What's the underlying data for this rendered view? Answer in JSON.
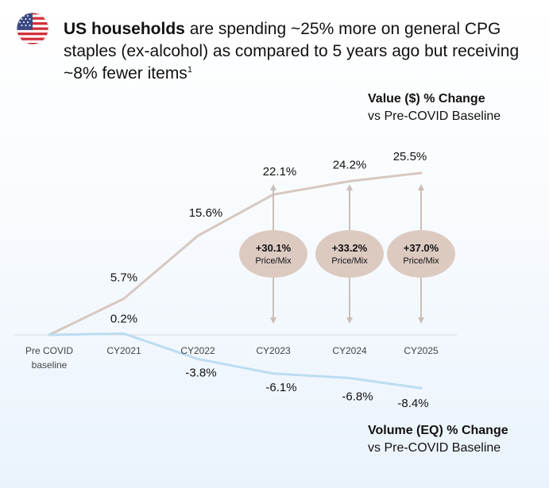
{
  "headline": {
    "bold": "US households",
    "rest": " are spending ~25% more on general CPG staples (ex-alcohol) as compared to 5 years ago but receiving ~8% fewer items",
    "footnote": "1"
  },
  "flag_icon": "us-flag-icon",
  "colors": {
    "value_line": "#d7c8c0",
    "volume_line": "#bcdcf2",
    "badge_fill": "#dccac1",
    "arrow": "#c9bfb9",
    "baseline": "#d9d9d9"
  },
  "value_title": {
    "title": "Value ($) % Change",
    "subtitle": "vs Pre-COVID Baseline"
  },
  "volume_title": {
    "title": "Volume (EQ) % Change",
    "subtitle": "vs Pre-COVID Baseline"
  },
  "chart_data": {
    "type": "line",
    "categories": [
      "Pre COVID baseline",
      "CY2021",
      "CY2022",
      "CY2023",
      "CY2024",
      "CY2025"
    ],
    "series": [
      {
        "name": "Value ($) % Change vs Pre-COVID Baseline",
        "values": [
          0,
          5.7,
          15.6,
          22.1,
          24.2,
          25.5
        ],
        "labels": [
          "",
          "5.7%",
          "15.6%",
          "22.1%",
          "24.2%",
          "25.5%"
        ]
      },
      {
        "name": "Volume (EQ) % Change vs Pre-COVID Baseline",
        "values": [
          0,
          0.2,
          -3.8,
          -6.1,
          -6.8,
          -8.4
        ],
        "labels": [
          "",
          "0.2%",
          "-3.8%",
          "-6.1%",
          "-6.8%",
          "-8.4%"
        ]
      }
    ],
    "annotations": [
      {
        "category": "CY2023",
        "value": "+30.1%",
        "label": "Price/Mix"
      },
      {
        "category": "CY2024",
        "value": "+33.2%",
        "label": "Price/Mix"
      },
      {
        "category": "CY2025",
        "value": "+37.0%",
        "label": "Price/Mix"
      }
    ],
    "x_tick_labels": [
      [
        "Pre COVID",
        "baseline"
      ],
      [
        "CY2021"
      ],
      [
        "CY2022"
      ],
      [
        "CY2023"
      ],
      [
        "CY2024"
      ],
      [
        "CY2025"
      ]
    ],
    "ylim": [
      -10,
      27
    ]
  }
}
